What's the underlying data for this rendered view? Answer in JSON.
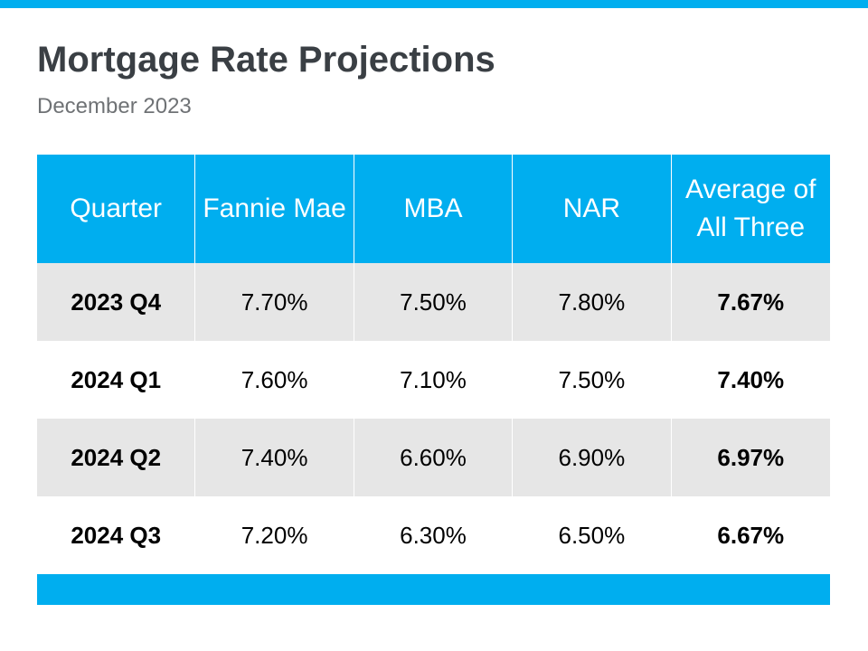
{
  "title": "Mortgage Rate Projections",
  "subtitle": "December 2023",
  "colors": {
    "accent": "#00aeef",
    "row_shaded": "#e6e6e6"
  },
  "chart_data": {
    "type": "table",
    "title": "Mortgage Rate Projections",
    "subtitle": "December 2023",
    "columns": [
      "Quarter",
      "Fannie Mae",
      "MBA",
      "NAR",
      "Average of All Three"
    ],
    "rows": [
      [
        "2023 Q4",
        "7.70%",
        "7.50%",
        "7.80%",
        "7.67%"
      ],
      [
        "2024 Q1",
        "7.60%",
        "7.10%",
        "7.50%",
        "7.40%"
      ],
      [
        "2024 Q2",
        "7.40%",
        "6.60%",
        "6.90%",
        "6.97%"
      ],
      [
        "2024 Q3",
        "7.20%",
        "6.30%",
        "6.50%",
        "6.67%"
      ]
    ]
  }
}
